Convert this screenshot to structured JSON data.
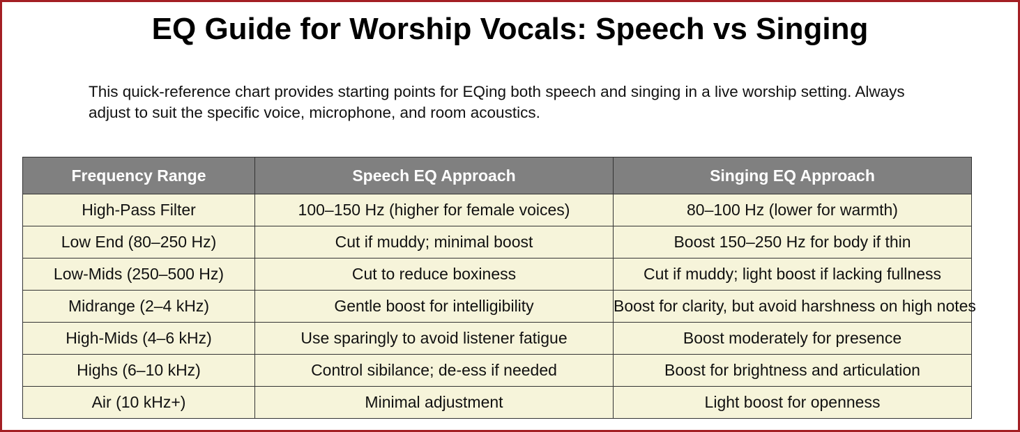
{
  "header": {
    "title": "EQ Guide for Worship Vocals: Speech vs Singing",
    "intro": "This quick-reference chart provides starting points for EQing both speech and singing in a live worship setting. Always adjust to suit the specific voice, microphone, and room acoustics."
  },
  "table": {
    "columns": [
      "Frequency Range",
      "Speech EQ Approach",
      "Singing EQ Approach"
    ],
    "rows": [
      [
        "High-Pass Filter",
        "100–150 Hz (higher for female voices)",
        "80–100 Hz (lower for warmth)"
      ],
      [
        "Low End (80–250 Hz)",
        "Cut if muddy; minimal boost",
        "Boost 150–250 Hz for body if thin"
      ],
      [
        "Low-Mids (250–500 Hz)",
        "Cut to reduce boxiness",
        "Cut if muddy; light boost if lacking fullness"
      ],
      [
        "Midrange (2–4 kHz)",
        "Gentle boost for intelligibility",
        "Boost for clarity, but avoid harshness on high notes"
      ],
      [
        "High-Mids (4–6 kHz)",
        "Use sparingly to avoid listener fatigue",
        "Boost moderately for presence"
      ],
      [
        "Highs (6–10 kHz)",
        "Control sibilance; de-ess if needed",
        "Boost for brightness and articulation"
      ],
      [
        "Air (10 kHz+)",
        "Minimal adjustment",
        "Light boost for openness"
      ]
    ]
  }
}
